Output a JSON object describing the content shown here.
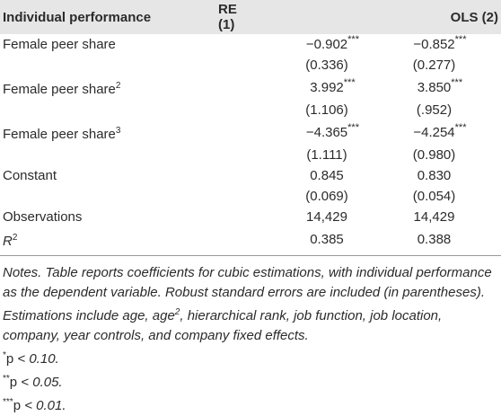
{
  "table": {
    "header": [
      "Individual performance",
      "RE (1)",
      "OLS (2)"
    ],
    "rows": [
      {
        "label": "Female peer share",
        "cells": [
          {
            "value": "−0.902",
            "stars": "***"
          },
          {
            "value": "−0.852",
            "stars": "***"
          }
        ]
      },
      {
        "cells": [
          {
            "value": "(0.336)"
          },
          {
            "value": "(0.277)"
          }
        ]
      },
      {
        "label": "Female peer share",
        "label_sup": "2",
        "cells": [
          {
            "value": "3.992",
            "stars": "***"
          },
          {
            "value": "3.850",
            "stars": "***"
          }
        ]
      },
      {
        "cells": [
          {
            "value": "(1.106)"
          },
          {
            "value": "(.952)"
          }
        ]
      },
      {
        "label": "Female peer share",
        "label_sup": "3",
        "cells": [
          {
            "value": "−4.365",
            "stars": "***"
          },
          {
            "value": "−4.254",
            "stars": "***"
          }
        ]
      },
      {
        "cells": [
          {
            "value": "(1.111)"
          },
          {
            "value": "(0.980)"
          }
        ]
      },
      {
        "label": "Constant",
        "cells": [
          {
            "value": "0.845"
          },
          {
            "value": "0.830"
          }
        ]
      },
      {
        "cells": [
          {
            "value": "(0.069)"
          },
          {
            "value": "(0.054)"
          }
        ]
      },
      {
        "label": "Observations",
        "cells": [
          {
            "value": "14,429"
          },
          {
            "value": "14,429"
          }
        ]
      },
      {
        "label": "R",
        "label_italic": true,
        "label_sup": "2",
        "cells": [
          {
            "value": "0.385"
          },
          {
            "value": "0.388"
          }
        ]
      }
    ]
  },
  "notes": {
    "text_before": "Notes. Table reports coefficients for cubic estimations, with individual performance as the dependent variable. Robust standard errors are included (in parentheses). Estimations include age, age",
    "sup": "2",
    "text_after": ", hierarchical rank, job function, job location, company, year controls, and company fixed effects."
  },
  "footnotes": [
    {
      "stars": "*",
      "p": "p",
      "text": " < 0.10."
    },
    {
      "stars": "**",
      "p": "p",
      "text": " < 0.05."
    },
    {
      "stars": "***",
      "p": "p",
      "text": " < 0.01."
    }
  ]
}
